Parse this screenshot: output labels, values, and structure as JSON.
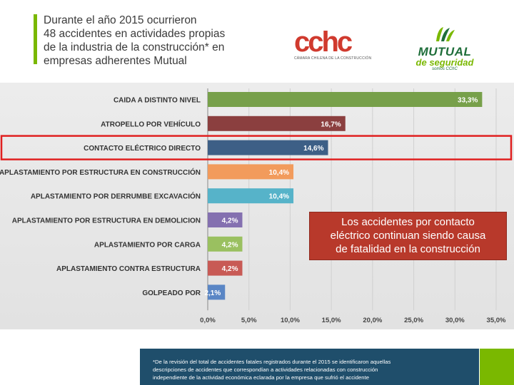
{
  "header": {
    "lines": [
      "Durante el año 2015 ocurrieron",
      "48 accidentes en actividades propias",
      "de la industria de la construcción* en",
      "empresas adherentes Mutual"
    ]
  },
  "logos": {
    "cchc": {
      "word": "cchc",
      "subtitle": "CÁMARA CHILENA DE LA CONSTRUCCIÓN",
      "color": "#d03a2e"
    },
    "mutual": {
      "word": "MUTUAL",
      "subtitle": "de seguridad",
      "tag": "somos CChC",
      "colors": [
        "#1f6e3a",
        "#7ab800"
      ]
    }
  },
  "chart_data": {
    "type": "bar",
    "orientation": "horizontal",
    "categories": [
      "CAIDA A DISTINTO NIVEL",
      "ATROPELLO POR VEHÍCULO",
      "CONTACTO ELÉCTRICO DIRECTO",
      "APLASTAMIENTO POR ESTRUCTURA EN CONSTRUCCIÓN",
      "APLASTAMIENTO POR DERRUMBE EXCAVACIÓN",
      "APLASTAMIENTO POR ESTRUCTURA EN DEMOLICION",
      "APLASTAMIENTO POR CARGA",
      "APLASTAMIENTO CONTRA ESTRUCTURA",
      "GOLPEADO POR"
    ],
    "values": [
      33.3,
      16.7,
      14.6,
      10.4,
      10.4,
      4.2,
      4.2,
      4.2,
      2.1
    ],
    "data_labels": [
      "33,3%",
      "16,7%",
      "14,6%",
      "10,4%",
      "10,4%",
      "4,2%",
      "4,2%",
      "4,2%",
      "2,1%"
    ],
    "colors": [
      "#77a04a",
      "#8b3f3f",
      "#3d5f86",
      "#f29b5c",
      "#56b3c9",
      "#8470b0",
      "#9ac060",
      "#c85a55",
      "#5a86c5"
    ],
    "xlim": [
      0,
      35
    ],
    "xticks": [
      0,
      5,
      10,
      15,
      20,
      25,
      30,
      35
    ],
    "xtick_labels": [
      "0,0%",
      "5,0%",
      "10,0%",
      "15,0%",
      "20,0%",
      "25,0%",
      "30,0%",
      "35,0%"
    ],
    "highlight_index": 2,
    "highlight_color": "#e02020",
    "grid": true
  },
  "callout": {
    "lines": [
      "Los accidentes por contacto",
      "eléctrico continuan siendo causa",
      "de fatalidad en la construcción"
    ]
  },
  "footnote": {
    "lines": [
      "*De la revisión del total de accidentes fatales registrados durante el 2015 se identificaron aquellas",
      "descripciones de accidentes que correspondían a actividades relacionadas con construcción",
      "independiente de la actividad económica eclarada por la empresa que sufrió el accidente"
    ]
  }
}
